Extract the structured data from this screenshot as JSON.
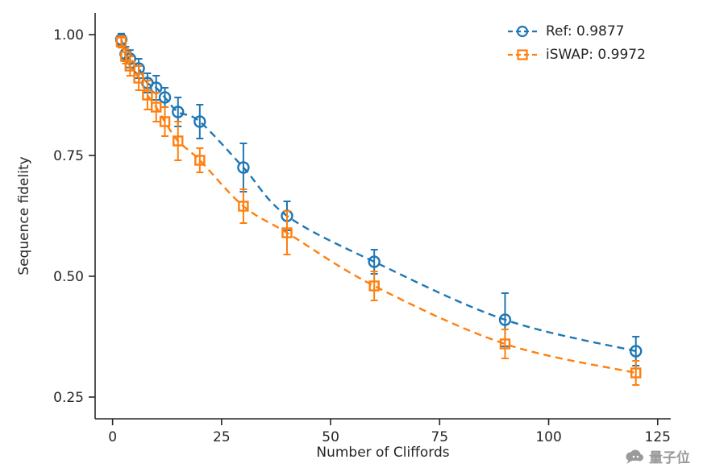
{
  "chart_data": {
    "type": "scatter",
    "title": "",
    "xlabel": "Number of Cliffords",
    "ylabel": "Sequence fidelity",
    "xlim": [
      -4,
      128
    ],
    "ylim": [
      0.205,
      1.045
    ],
    "xticks": [
      0,
      25,
      50,
      75,
      100,
      125
    ],
    "yticks": [
      0.25,
      0.5,
      0.75,
      1.0
    ],
    "grid": false,
    "legend_position": "upper right",
    "x": [
      2,
      3,
      4,
      6,
      8,
      10,
      12,
      15,
      20,
      30,
      40,
      60,
      90,
      120
    ],
    "series": [
      {
        "name": "Ref",
        "label": "Ref: 0.9877",
        "marker": "circle",
        "color": "#1f77b4",
        "linestyle": "dashed",
        "values": [
          0.99,
          0.96,
          0.95,
          0.93,
          0.9,
          0.89,
          0.87,
          0.84,
          0.82,
          0.725,
          0.625,
          0.53,
          0.41,
          0.345
        ],
        "errors": [
          0.012,
          0.015,
          0.018,
          0.02,
          0.02,
          0.025,
          0.02,
          0.03,
          0.035,
          0.05,
          0.03,
          0.025,
          0.055,
          0.03
        ]
      },
      {
        "name": "iSWAP",
        "label": "iSWAP: 0.9972",
        "marker": "square",
        "color": "#ff7f0e",
        "linestyle": "dashed",
        "values": [
          0.985,
          0.955,
          0.935,
          0.91,
          0.875,
          0.85,
          0.82,
          0.78,
          0.74,
          0.645,
          0.59,
          0.48,
          0.36,
          0.3
        ],
        "errors": [
          0.012,
          0.015,
          0.02,
          0.025,
          0.03,
          0.03,
          0.03,
          0.04,
          0.025,
          0.035,
          0.045,
          0.03,
          0.03,
          0.025
        ]
      }
    ]
  },
  "watermark": {
    "text": "量子位",
    "icon": "speech-bubble-icon"
  }
}
